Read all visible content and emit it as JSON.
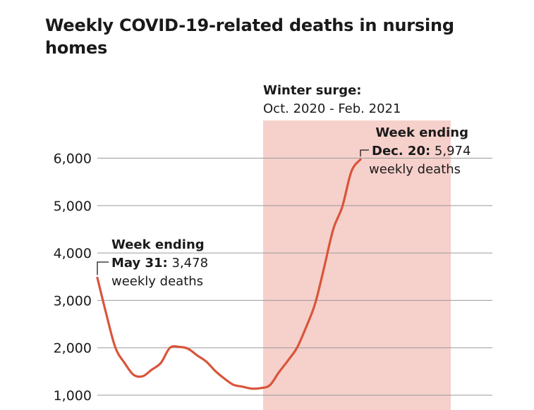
{
  "chart_data": {
    "type": "line",
    "title": "Weekly COVID-19-related deaths in nursing homes",
    "xlabel": "",
    "ylabel": "",
    "y_ticks": [
      {
        "value": 1000,
        "label": "1,000"
      },
      {
        "value": 2000,
        "label": "2,000"
      },
      {
        "value": 3000,
        "label": "3,000"
      },
      {
        "value": 4000,
        "label": "4,000"
      },
      {
        "value": 5000,
        "label": "5,000"
      },
      {
        "value": 6000,
        "label": "6,000"
      }
    ],
    "grid": true,
    "series": [
      {
        "color": "#d9553a",
        "x": [
          "2020-05-31",
          "2020-06-07",
          "2020-06-14",
          "2020-06-21",
          "2020-06-28",
          "2020-07-05",
          "2020-07-12",
          "2020-07-19",
          "2020-07-26",
          "2020-08-02",
          "2020-08-09",
          "2020-08-16",
          "2020-08-23",
          "2020-08-30",
          "2020-09-06",
          "2020-09-13",
          "2020-09-20",
          "2020-09-27",
          "2020-10-04",
          "2020-10-11",
          "2020-10-18",
          "2020-10-25",
          "2020-11-01",
          "2020-11-08",
          "2020-11-15",
          "2020-11-22",
          "2020-11-29",
          "2020-12-06",
          "2020-12-13",
          "2020-12-20"
        ],
        "values": [
          3478,
          2700,
          2000,
          1680,
          1430,
          1400,
          1540,
          1680,
          2000,
          2020,
          1980,
          1840,
          1710,
          1510,
          1350,
          1220,
          1180,
          1140,
          1150,
          1210,
          1480,
          1730,
          2000,
          2430,
          2930,
          3700,
          4500,
          4980,
          5720,
          5974
        ]
      }
    ],
    "shaded_region": {
      "label_title": "Winter surge:",
      "label_range": "Oct. 2020 - Feb. 2021",
      "color": "#f6d0cb"
    },
    "annotations": [
      {
        "heading": "Week ending",
        "date": "May 31:",
        "value": "3,478",
        "unit": "weekly deaths"
      },
      {
        "heading": "Week ending",
        "date": "Dec. 20:",
        "value": "5,974",
        "unit": "weekly deaths"
      }
    ]
  }
}
